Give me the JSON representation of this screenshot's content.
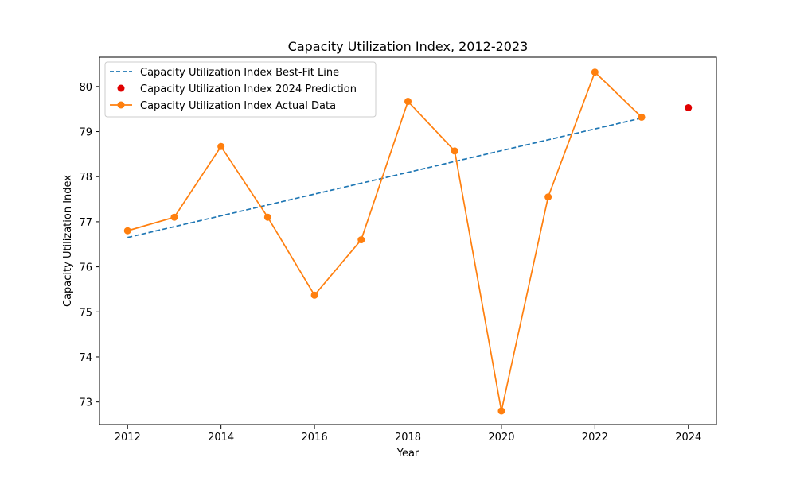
{
  "chart_data": {
    "type": "line",
    "title": "Capacity Utilization Index, 2012-2023",
    "xlabel": "Year",
    "ylabel": "Capacity Utilization Index",
    "xlim": [
      2011.4,
      2024.6
    ],
    "ylim": [
      72.5,
      80.65
    ],
    "x_ticks": [
      "2012",
      "2014",
      "2016",
      "2018",
      "2020",
      "2022",
      "2024"
    ],
    "y_ticks": [
      "73",
      "74",
      "75",
      "76",
      "77",
      "78",
      "79",
      "80"
    ],
    "grid": false,
    "legend_position": "top-left",
    "series": [
      {
        "name": "Capacity Utilization Index Best-Fit Line",
        "kind": "line",
        "style": "dashed",
        "color": "#1f77b4",
        "x": [
          2012,
          2023
        ],
        "y": [
          76.65,
          79.3
        ]
      },
      {
        "name": "Capacity Utilization Index 2024 Prediction",
        "kind": "scatter",
        "color": "#e00000",
        "x": [
          2024
        ],
        "y": [
          79.53
        ]
      },
      {
        "name": "Capacity Utilization Index Actual Data",
        "kind": "line-markers",
        "color": "#ff7f0e",
        "x": [
          2012,
          2013,
          2014,
          2015,
          2016,
          2017,
          2018,
          2019,
          2020,
          2021,
          2022,
          2023
        ],
        "y": [
          76.8,
          77.1,
          78.67,
          77.1,
          75.37,
          76.6,
          79.67,
          78.57,
          72.8,
          77.55,
          80.32,
          79.32
        ]
      }
    ]
  }
}
